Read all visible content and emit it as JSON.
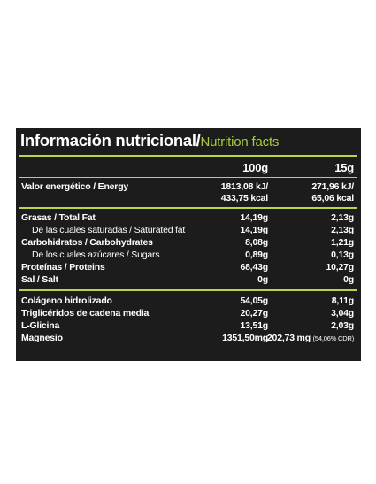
{
  "title": {
    "main": "Información nutricional/",
    "sub": "Nutrition facts"
  },
  "columns": {
    "per100": "100g",
    "per15": "15g"
  },
  "rows": {
    "energy": {
      "label": "Valor energético / Energy",
      "v100_kj": "1813,08 kJ/",
      "v100_kcal": "433,75 kcal",
      "v15_kj": "271,96 kJ/",
      "v15_kcal": "65,06 kcal"
    },
    "fat": {
      "label": "Grasas / Total Fat",
      "v100": "14,19g",
      "v15": "2,13g"
    },
    "satfat": {
      "label": "De las cuales saturadas / Saturated fat",
      "v100": "14,19g",
      "v15": "2,13g"
    },
    "carbs": {
      "label": "Carbohidratos / Carbohydrates",
      "v100": "8,08g",
      "v15": "1,21g"
    },
    "sugars": {
      "label": "De los cuales azúcares / Sugars",
      "v100": "0,89g",
      "v15": "0,13g"
    },
    "protein": {
      "label": "Proteínas / Proteins",
      "v100": "68,43g",
      "v15": "10,27g"
    },
    "salt": {
      "label": "Sal / Salt",
      "v100": "0g",
      "v15": "0g"
    },
    "collagen": {
      "label": "Colágeno hidrolizado",
      "v100": "54,05g",
      "v15": "8,11g"
    },
    "mct": {
      "label": "Triglicéridos de cadena media",
      "v100": "20,27g",
      "v15": "3,04g"
    },
    "glycine": {
      "label": "L-Glicina",
      "v100": "13,51g",
      "v15": "2,03g"
    },
    "magnesium": {
      "label": "Magnesio",
      "v100": "1351,50mg",
      "v15": "202,73 mg",
      "v15_cdr": "(54,06% CDR)"
    }
  },
  "colors": {
    "panel": "#1c1c1c",
    "accent": "#a7cc3c",
    "text": "#ffffff"
  }
}
